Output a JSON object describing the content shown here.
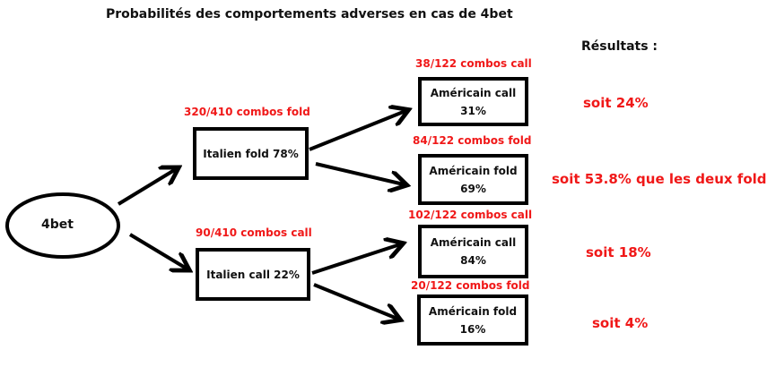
{
  "title": "Probabilités des comportements adverses en cas de 4bet",
  "results_heading": "Résultats :",
  "root": "4bet",
  "italien_fold": {
    "label": "Italien fold 78%",
    "combos": "320/410 combos fold"
  },
  "italien_call": {
    "label": "Italien call 22%",
    "combos": "90/410 combos call"
  },
  "americain": [
    {
      "label": "Américain call",
      "pct": "31%",
      "combos": "38/122 combos call",
      "result": "soit 24%"
    },
    {
      "label": "Américain fold",
      "pct": "69%",
      "combos": "84/122 combos fold",
      "result": "soit 53.8% que les deux fold"
    },
    {
      "label": "Américain call",
      "pct": "84%",
      "combos": "102/122 combos call",
      "result": "soit 18%"
    },
    {
      "label": "Américain fold",
      "pct": "16%",
      "combos": "20/122 combos fold",
      "result": "soit 4%"
    }
  ],
  "colors": {
    "annotation": "#f01818",
    "stroke": "#000000"
  }
}
